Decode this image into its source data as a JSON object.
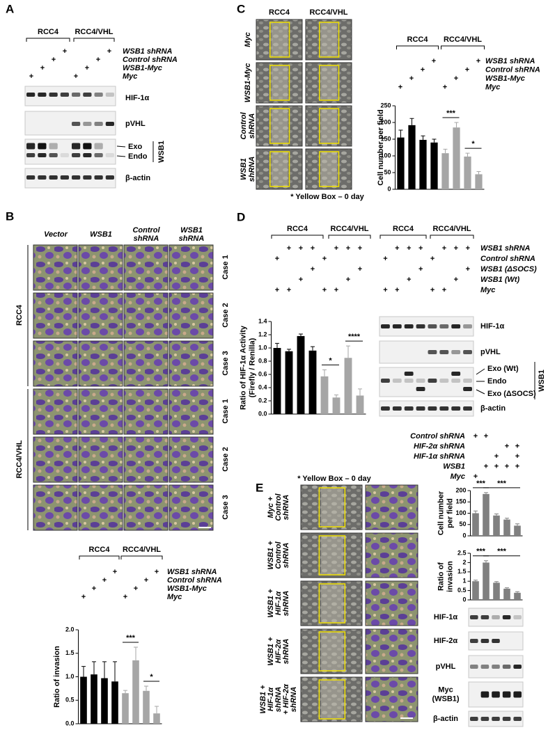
{
  "figure": {
    "A": {
      "label": "A",
      "groups": [
        "RCC4",
        "RCC4/VHL"
      ],
      "design": [
        {
          "label": "WSB1 shRNA",
          "cells": [
            null,
            null,
            null,
            "+",
            null,
            null,
            null,
            "+"
          ]
        },
        {
          "label": "Control shRNA",
          "cells": [
            null,
            null,
            "+",
            null,
            null,
            null,
            "+",
            null
          ]
        },
        {
          "label": "WSB1-Myc",
          "cells": [
            null,
            "+",
            null,
            null,
            null,
            "+",
            null,
            null
          ]
        },
        {
          "label": "Myc",
          "cells": [
            "+",
            null,
            null,
            null,
            "+",
            null,
            null,
            null
          ]
        }
      ],
      "blots": [
        "HIF-1α",
        "pVHL"
      ],
      "wsb1_bands": [
        "Exo",
        "Endo"
      ],
      "wsb1": "WSB1",
      "loading": "β-actin"
    },
    "B": {
      "label": "B",
      "columns": [
        [
          "Vector"
        ],
        [
          "WSB1"
        ],
        [
          "Control",
          "shRNA"
        ],
        [
          "WSB1",
          "shRNA"
        ]
      ],
      "groups": [
        "RCC4",
        "RCC4/VHL"
      ],
      "cases": [
        "Case 1",
        "Case 2",
        "Case 3"
      ]
    },
    "C": {
      "label": "C",
      "columns": [
        "RCC4",
        "RCC4/VHL"
      ],
      "rows": [
        [
          "Myc"
        ],
        [
          "WSB1-Myc"
        ],
        [
          "Control",
          "shRNA"
        ],
        [
          "WSB1",
          "shRNA"
        ]
      ],
      "caption": "* Yellow Box – 0 day"
    },
    "D": {
      "label": "D",
      "groups": [
        "RCC4",
        "RCC4/VHL"
      ],
      "design": [
        {
          "label": "WSB1 shRNA",
          "cells": [
            null,
            "+",
            "+",
            "+",
            null,
            "+",
            "+",
            "+"
          ]
        },
        {
          "label": "Control shRNA",
          "cells": [
            "+",
            null,
            null,
            null,
            "+",
            null,
            null,
            null
          ]
        },
        {
          "label": "WSB1 (ΔSOCS)",
          "cells": [
            null,
            null,
            null,
            "+",
            null,
            null,
            null,
            "+"
          ]
        },
        {
          "label": "WSB1 (Wt)",
          "cells": [
            null,
            null,
            "+",
            null,
            null,
            null,
            "+",
            null
          ]
        },
        {
          "label": "Myc",
          "cells": [
            "+",
            "+",
            null,
            null,
            "+",
            "+",
            null,
            null
          ]
        }
      ],
      "blots": [
        "HIF-1α",
        "pVHL"
      ],
      "wsb1_bands": [
        "Exo (Wt)",
        "Endo",
        "Exo (ΔSOCS)"
      ],
      "wsb1": "WSB1",
      "loading": "β-actin"
    },
    "E": {
      "label": "E",
      "caption": "* Yellow Box – 0 day",
      "rows": [
        [
          "Myc +",
          "Control",
          "shRNA"
        ],
        [
          "WSB1 +",
          "Control",
          "shRNA"
        ],
        [
          "WSB1 +",
          "HIF-1α",
          "shRNA"
        ],
        [
          "WSB1 +",
          "HIF-2α",
          "shRNA"
        ],
        [
          "WSB1 +",
          "HIF-1α",
          "shRNA",
          "+ HIF-2α",
          "shRNA"
        ]
      ],
      "design": [
        {
          "label": "Control shRNA",
          "cells": [
            "+",
            "+",
            null,
            null,
            null
          ]
        },
        {
          "label": "HIF-2α shRNA",
          "cells": [
            null,
            null,
            null,
            "+",
            "+"
          ]
        },
        {
          "label": "HIF-1α shRNA",
          "cells": [
            null,
            null,
            "+",
            null,
            "+"
          ]
        },
        {
          "label": "WSB1",
          "cells": [
            null,
            "+",
            "+",
            "+",
            "+"
          ]
        },
        {
          "label": "Myc",
          "cells": [
            "+",
            null,
            null,
            null,
            null
          ]
        }
      ],
      "blots": [
        [
          "HIF-1α"
        ],
        [
          "HIF-2α"
        ],
        [
          "pVHL"
        ],
        [
          "Myc",
          "(WSB1)"
        ],
        [
          "β-actin"
        ]
      ]
    }
  },
  "chart_data": [
    {
      "type": "bar",
      "ylabel": [
        "Cell number per field"
      ],
      "groups": [
        "RCC4",
        "RCC4/VHL"
      ],
      "design": [
        {
          "label": "WSB1 shRNA",
          "cells": [
            null,
            null,
            null,
            "+",
            null,
            null,
            null,
            "+"
          ]
        },
        {
          "label": "Control shRNA",
          "cells": [
            null,
            null,
            "+",
            null,
            null,
            null,
            "+",
            null
          ]
        },
        {
          "label": "WSB1-Myc",
          "cells": [
            null,
            "+",
            null,
            null,
            null,
            "+",
            null,
            null
          ]
        },
        {
          "label": "Myc",
          "cells": [
            "+",
            null,
            null,
            null,
            "+",
            null,
            null,
            null
          ]
        }
      ],
      "values": [
        155,
        192,
        148,
        140,
        108,
        185,
        98,
        45
      ],
      "errors": [
        22,
        20,
        12,
        10,
        12,
        15,
        10,
        8
      ],
      "colors": [
        "#000000",
        "#000000",
        "#000000",
        "#000000",
        "#a6a6a6",
        "#a6a6a6",
        "#a6a6a6",
        "#a6a6a6"
      ],
      "ylim": [
        0,
        250
      ],
      "yticks": [
        0,
        50,
        100,
        150,
        200,
        250
      ],
      "annotations": [
        "***",
        "*"
      ]
    },
    {
      "type": "bar",
      "ylabel": [
        "Ratio of  HIF-1α Activity",
        "(Firefly / Renilla)"
      ],
      "values": [
        1.0,
        0.95,
        1.18,
        0.96,
        0.57,
        0.25,
        0.85,
        0.28
      ],
      "errors": [
        0.07,
        0.03,
        0.03,
        0.06,
        0.1,
        0.04,
        0.18,
        0.1
      ],
      "colors": [
        "#000000",
        "#000000",
        "#000000",
        "#000000",
        "#a6a6a6",
        "#a6a6a6",
        "#a6a6a6",
        "#a6a6a6"
      ],
      "ylim": [
        0,
        1.4
      ],
      "yticks": [
        {
          "value": 0,
          "label": "0.0"
        },
        0.2,
        0.4,
        0.6,
        0.8,
        {
          "value": 1,
          "label": "1.0"
        },
        1.2,
        1.4
      ],
      "annotations": [
        "*",
        "****"
      ]
    },
    {
      "type": "bar",
      "ylabel": [
        "Ratio of invasion"
      ],
      "groups": [
        "RCC4",
        "RCC4/VHL"
      ],
      "design": [
        {
          "label": "WSB1 shRNA",
          "cells": [
            null,
            null,
            null,
            "+",
            null,
            null,
            null,
            "+"
          ]
        },
        {
          "label": "Control shRNA",
          "cells": [
            null,
            null,
            "+",
            null,
            null,
            null,
            "+",
            null
          ]
        },
        {
          "label": "WSB1-Myc",
          "cells": [
            null,
            "+",
            null,
            null,
            null,
            "+",
            null,
            null
          ]
        },
        {
          "label": "Myc",
          "cells": [
            "+",
            null,
            null,
            null,
            "+",
            null,
            null,
            null
          ]
        }
      ],
      "values": [
        1.0,
        1.05,
        0.97,
        0.9,
        0.65,
        1.35,
        0.7,
        0.22
      ],
      "errors": [
        0.22,
        0.27,
        0.35,
        0.42,
        0.06,
        0.28,
        0.1,
        0.15
      ],
      "colors": [
        "#000000",
        "#000000",
        "#000000",
        "#000000",
        "#a6a6a6",
        "#a6a6a6",
        "#a6a6a6",
        "#a6a6a6"
      ],
      "ylim": [
        0,
        2
      ],
      "yticks": [
        {
          "value": 0,
          "label": "0.0"
        },
        0.5,
        {
          "value": 1,
          "label": "1.0"
        },
        1.5,
        {
          "value": 2,
          "label": "2.0"
        }
      ],
      "annotations": [
        "***",
        "*"
      ]
    },
    {
      "type": "bar",
      "ylabel": [
        "Cell number",
        "per field"
      ],
      "values": [
        100,
        185,
        90,
        72,
        45
      ],
      "errors": [
        10,
        6,
        7,
        6,
        8
      ],
      "colors": [
        "#808080",
        "#808080",
        "#808080",
        "#808080",
        "#808080"
      ],
      "ylim": [
        0,
        200
      ],
      "yticks": [
        0,
        50,
        100,
        150,
        200
      ],
      "annotations": [
        "***",
        "***"
      ]
    },
    {
      "type": "bar",
      "ylabel": [
        "Ratio of",
        "invasion"
      ],
      "values": [
        1.0,
        2.0,
        0.92,
        0.6,
        0.38
      ],
      "errors": [
        0.06,
        0.1,
        0.06,
        0.05,
        0.06
      ],
      "colors": [
        "#808080",
        "#808080",
        "#808080",
        "#808080",
        "#808080"
      ],
      "ylim": [
        0,
        2.5
      ],
      "yticks": [
        0,
        0.5,
        1,
        1.5,
        2,
        2.5
      ],
      "annotations": [
        "***",
        "***"
      ]
    }
  ]
}
